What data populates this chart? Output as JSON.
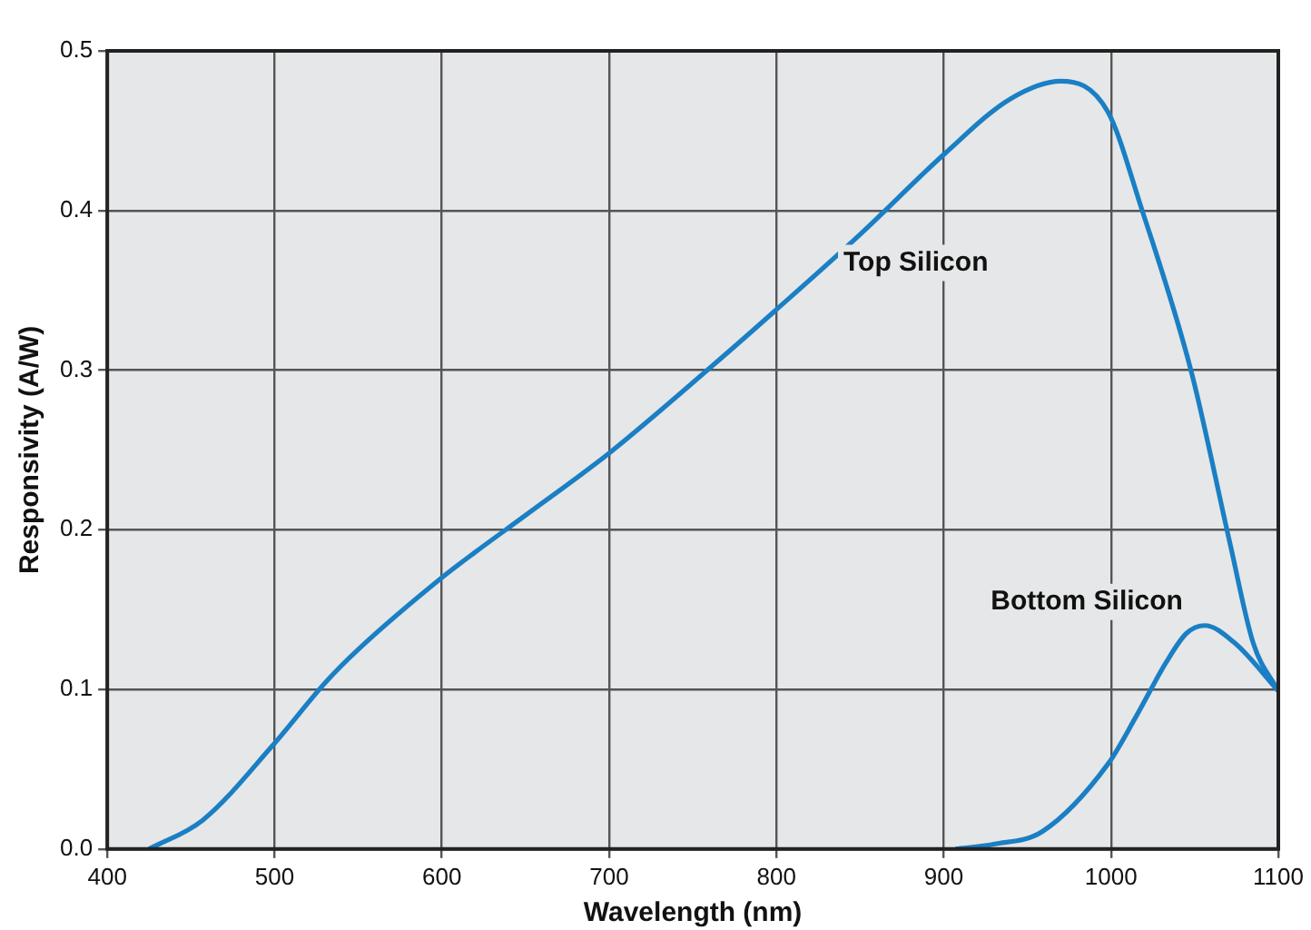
{
  "chart_data": {
    "type": "line",
    "xlabel": "Wavelength (nm)",
    "ylabel": "Responsivity (A/W)",
    "xlim": [
      400,
      1100
    ],
    "xticks": [
      400,
      500,
      600,
      700,
      800,
      900,
      1000,
      1100
    ],
    "ylim": [
      0,
      0.5
    ],
    "yticks": [
      {
        "value": 0,
        "label": "0.0"
      },
      0.1,
      0.2,
      0.3,
      0.4,
      0.5
    ],
    "grid": true,
    "legend": false,
    "marker": "none",
    "line_style": "solid",
    "series": [
      {
        "name": "Top Silicon",
        "color": "#1a7fc4",
        "x": [
          425,
          457,
          499,
          531,
          550,
          600,
          620,
          650,
          700,
          762,
          799,
          850,
          901,
          940,
          970,
          998,
          1018,
          1048,
          1071,
          1085,
          1100
        ],
        "values": [
          0,
          0.018,
          0.065,
          0.105,
          0.125,
          0.17,
          0.186,
          0.209,
          0.248,
          0.303,
          0.337,
          0.385,
          0.436,
          0.47,
          0.481,
          0.462,
          0.402,
          0.299,
          0.192,
          0.129,
          0.099
        ]
      },
      {
        "name": "Bottom Silicon",
        "color": "#1a7fc4",
        "x": [
          907,
          930,
          959,
          998,
          1015,
          1033,
          1045,
          1056,
          1074,
          1100
        ],
        "values": [
          0,
          0.003,
          0.011,
          0.053,
          0.083,
          0.117,
          0.135,
          0.14,
          0.129,
          0.099
        ]
      }
    ]
  }
}
